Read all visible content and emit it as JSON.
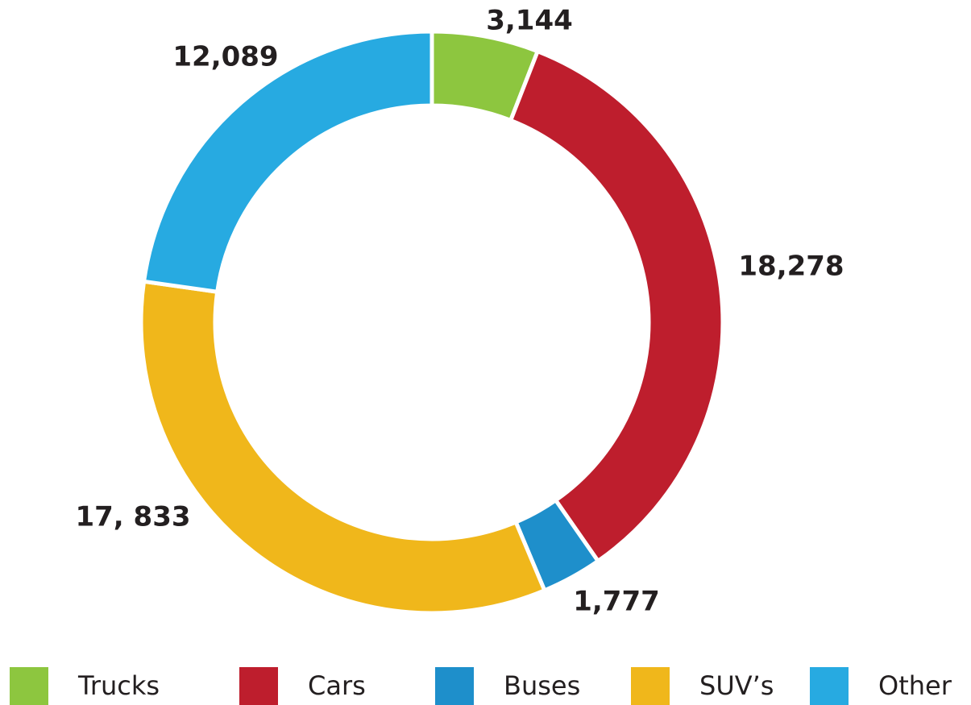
{
  "chart_data": {
    "type": "donut",
    "categories": [
      "Trucks",
      "Cars",
      "Buses",
      "SUV’s",
      "Other"
    ],
    "values": [
      3144,
      18278,
      1777,
      17833,
      12089
    ],
    "value_labels": [
      "3,144",
      "18,278",
      "1,777",
      "17, 833",
      "12,089"
    ],
    "colors": [
      "#8dc63f",
      "#be1e2d",
      "#1e8fcb",
      "#f0b71b",
      "#27aae1"
    ],
    "legend": "bottom"
  }
}
